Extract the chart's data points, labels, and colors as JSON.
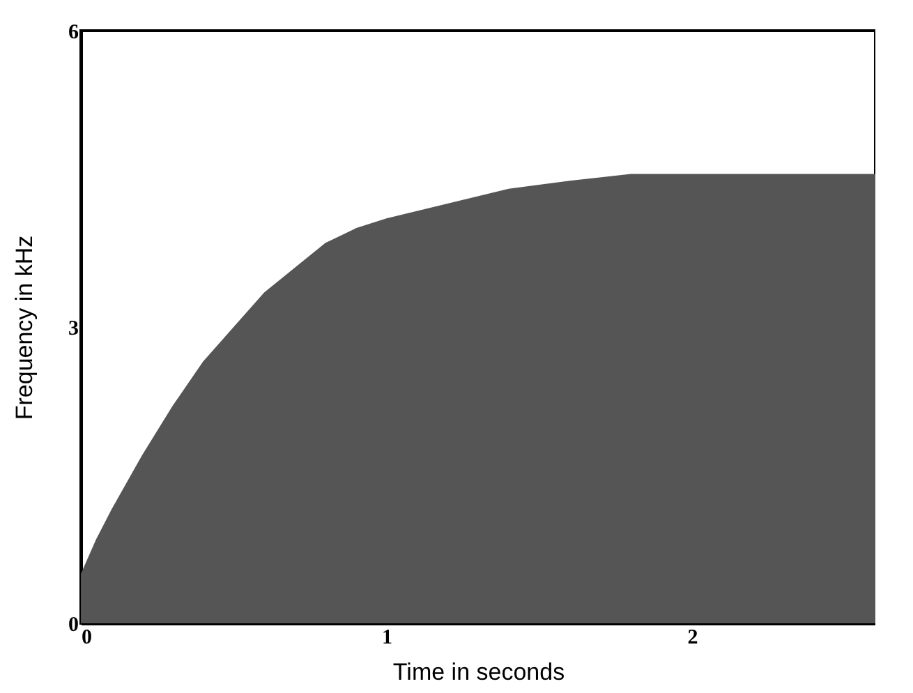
{
  "chart_data": {
    "type": "area",
    "xlabel": "Time in seconds",
    "ylabel": "Frequency in kHz",
    "x": [
      0,
      0.05,
      0.1,
      0.2,
      0.3,
      0.4,
      0.5,
      0.6,
      0.7,
      0.8,
      0.9,
      1.0,
      1.2,
      1.4,
      1.6,
      1.8,
      2.0,
      2.3,
      2.6
    ],
    "series": [
      {
        "color": "#555555",
        "values": [
          0.5,
          0.85,
          1.15,
          1.7,
          2.2,
          2.65,
          3.0,
          3.35,
          3.6,
          3.85,
          4.0,
          4.1,
          4.25,
          4.4,
          4.48,
          4.55,
          4.55,
          4.55,
          4.55
        ]
      }
    ],
    "xlim": [
      0,
      2.6
    ],
    "xticks": [
      0,
      1,
      2
    ],
    "ylim": [
      0,
      6
    ],
    "yticks": [
      0,
      3,
      6
    ],
    "grid": false
  }
}
